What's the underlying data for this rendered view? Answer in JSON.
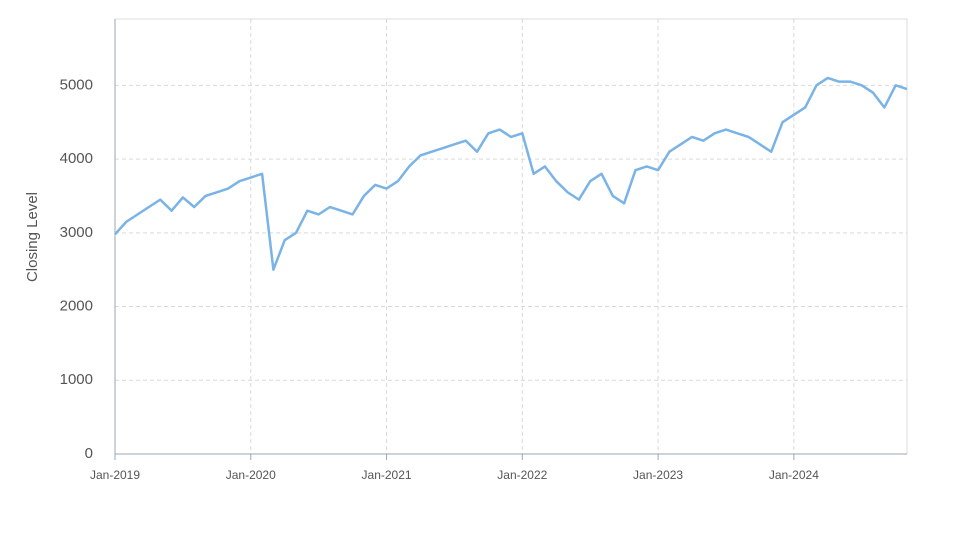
{
  "chart_data": {
    "type": "line",
    "y_label": "Closing Level",
    "x": [
      "2019-01",
      "2019-02",
      "2019-03",
      "2019-04",
      "2019-05",
      "2019-06",
      "2019-07",
      "2019-08",
      "2019-09",
      "2019-10",
      "2019-11",
      "2019-12",
      "2020-01",
      "2020-02",
      "2020-03",
      "2020-04",
      "2020-05",
      "2020-06",
      "2020-07",
      "2020-08",
      "2020-09",
      "2020-10",
      "2020-11",
      "2020-12",
      "2021-01",
      "2021-02",
      "2021-03",
      "2021-04",
      "2021-05",
      "2021-06",
      "2021-07",
      "2021-08",
      "2021-09",
      "2021-10",
      "2021-11",
      "2021-12",
      "2022-01",
      "2022-02",
      "2022-03",
      "2022-04",
      "2022-05",
      "2022-06",
      "2022-07",
      "2022-08",
      "2022-09",
      "2022-10",
      "2022-11",
      "2022-12",
      "2023-01",
      "2023-02",
      "2023-03",
      "2023-04",
      "2023-05",
      "2023-06",
      "2023-07",
      "2023-08",
      "2023-09",
      "2023-10",
      "2023-11",
      "2023-12",
      "2024-01",
      "2024-02",
      "2024-03",
      "2024-04",
      "2024-05",
      "2024-06",
      "2024-07",
      "2024-08",
      "2024-09",
      "2024-10",
      "2024-11"
    ],
    "series": [
      {
        "name": "Closing Level",
        "color": "#7ab3e6",
        "values": [
          2980,
          3150,
          3250,
          3350,
          3450,
          3300,
          3480,
          3350,
          3500,
          3550,
          3600,
          3700,
          3750,
          3800,
          2500,
          2900,
          3000,
          3300,
          3250,
          3350,
          3300,
          3250,
          3500,
          3650,
          3600,
          3700,
          3900,
          4050,
          4100,
          4150,
          4200,
          4250,
          4100,
          4350,
          4400,
          4300,
          4350,
          3800,
          3900,
          3700,
          3550,
          3450,
          3700,
          3800,
          3500,
          3400,
          3850,
          3900,
          3850,
          4100,
          4200,
          4300,
          4250,
          4350,
          4400,
          4350,
          4300,
          4200,
          4100,
          4500,
          4600,
          4700,
          5000,
          5100,
          5050,
          5050,
          5000,
          4900,
          4700,
          5000,
          4950
        ]
      }
    ],
    "xlim": [
      "2019-01",
      "2024-11"
    ],
    "xticks": [
      {
        "value": "2019-01",
        "label": "Jan-2019"
      },
      {
        "value": "2020-01",
        "label": "Jan-2020"
      },
      {
        "value": "2021-01",
        "label": "Jan-2021"
      },
      {
        "value": "2022-01",
        "label": "Jan-2022"
      },
      {
        "value": "2023-01",
        "label": "Jan-2023"
      },
      {
        "value": "2024-01",
        "label": "Jan-2024"
      }
    ],
    "ylim": [
      0,
      5900
    ],
    "yticks": [
      0,
      1000,
      2000,
      3000,
      4000,
      5000
    ],
    "grid": true
  }
}
